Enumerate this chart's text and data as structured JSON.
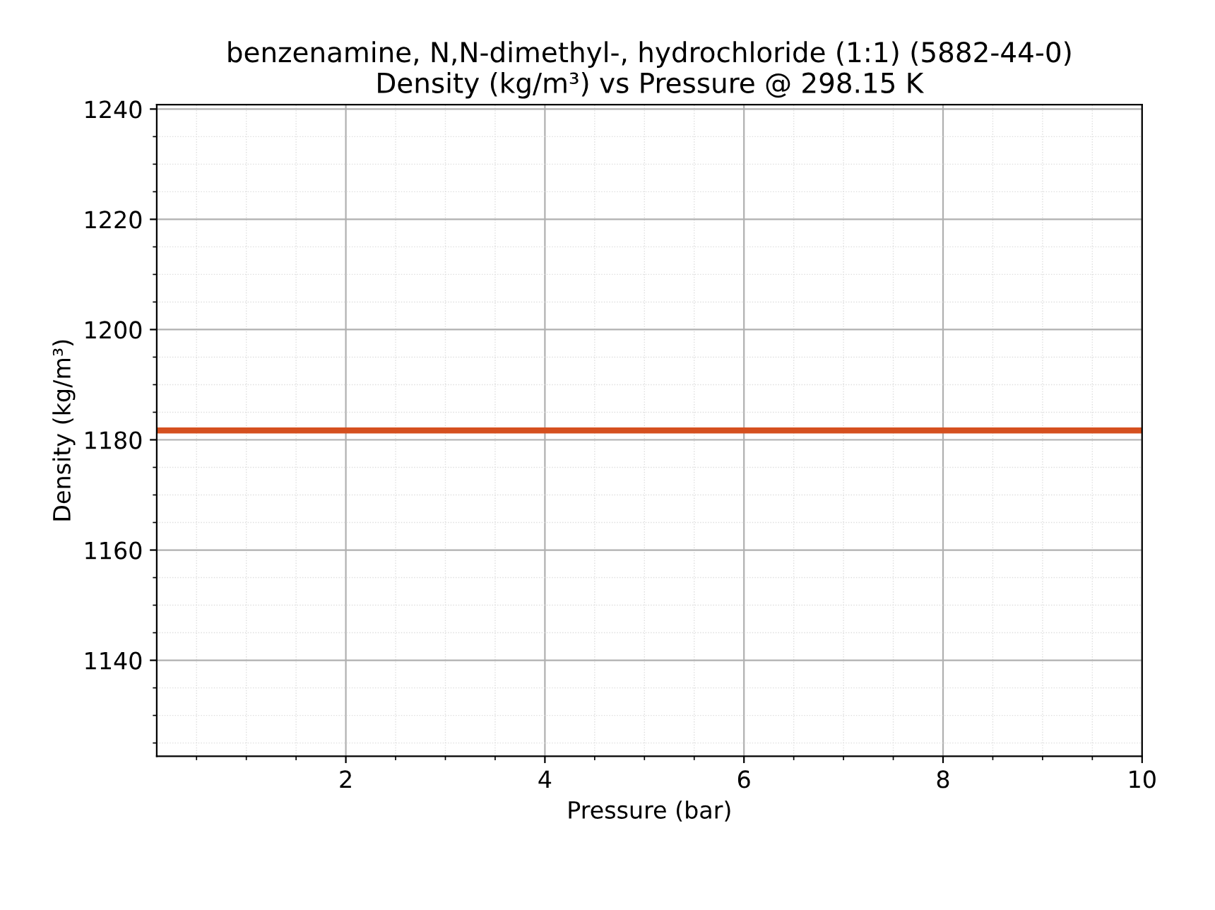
{
  "chart_data": {
    "type": "line",
    "title": "benzenamine, N,N-dimethyl-, hydrochloride (1:1) (5882-44-0)\nDensity (kg/m³) vs Pressure @ 298.15 K",
    "xlabel": "Pressure (bar)",
    "ylabel": "Density (kg/m³)",
    "x": [
      0.1,
      10
    ],
    "series": [
      {
        "color": "#d5501f",
        "values": [
          1181.7,
          1181.7
        ]
      }
    ],
    "xlim": [
      0.1,
      10
    ],
    "xticks": [
      2,
      4,
      6,
      8,
      10
    ],
    "ylim": [
      1122.6,
      1240.8
    ],
    "yticks": [
      1140,
      1160,
      1180,
      1200,
      1220,
      1240
    ],
    "grid": true,
    "marker": "none",
    "line_style": "solid"
  }
}
